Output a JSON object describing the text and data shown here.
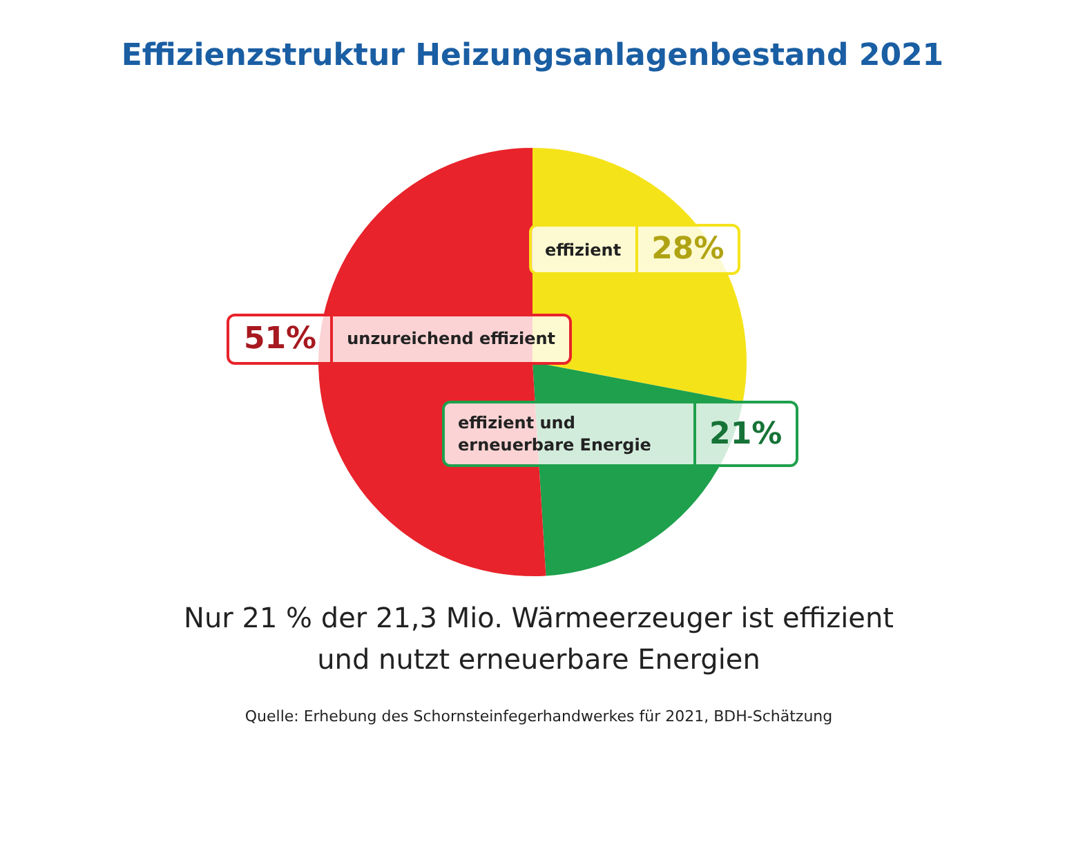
{
  "chart_data": {
    "type": "pie",
    "title": "Effizienzstruktur Heizungsanlagenbestand 2021",
    "categories": [
      "effizient",
      "effizient und erneuerbare Energie",
      "unzureichend effizient"
    ],
    "values": [
      28,
      21,
      51
    ],
    "value_labels": [
      "28%",
      "21%",
      "51%"
    ],
    "colors": [
      "#f5e31a",
      "#1ea04c",
      "#e8232b"
    ],
    "legend": false,
    "annotations": [
      "Nur 21 % der 21,3 Mio. Wärmeerzeuger ist effizient und nutzt erneuerbare Energien",
      "Quelle: Erhebung des Schornsteinfegerhandwerkes für 2021, BDH-Schätzung"
    ]
  }
}
